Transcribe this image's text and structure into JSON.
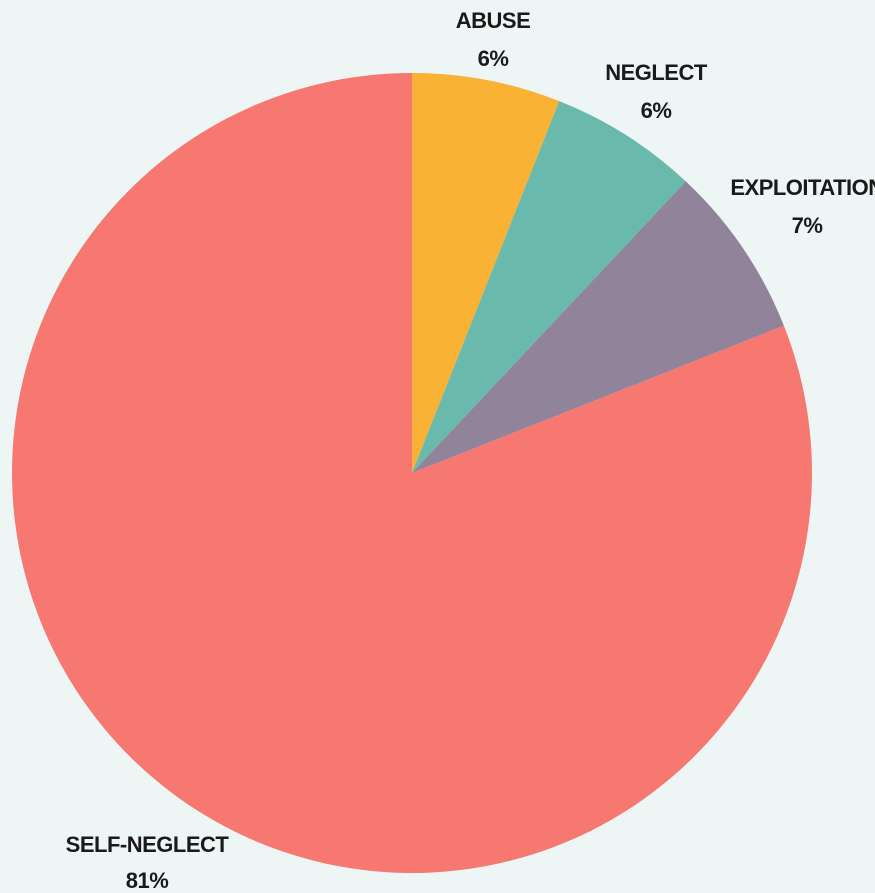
{
  "chart_data": {
    "type": "pie",
    "title": "",
    "slices": [
      {
        "label": "ABUSE",
        "value": 6,
        "value_label": "6%",
        "color": "#f9b233"
      },
      {
        "label": "NEGLECT",
        "value": 6,
        "value_label": "6%",
        "color": "#69b9ad"
      },
      {
        "label": "EXPLOITATION",
        "value": 7,
        "value_label": "7%",
        "color": "#918399"
      },
      {
        "label": "SELF-NEGLECT",
        "value": 81,
        "value_label": "81%",
        "color": "#f67871"
      }
    ],
    "start_angle": "12 o'clock",
    "direction": "clockwise",
    "legend": "none",
    "background": "#eef6f5"
  }
}
